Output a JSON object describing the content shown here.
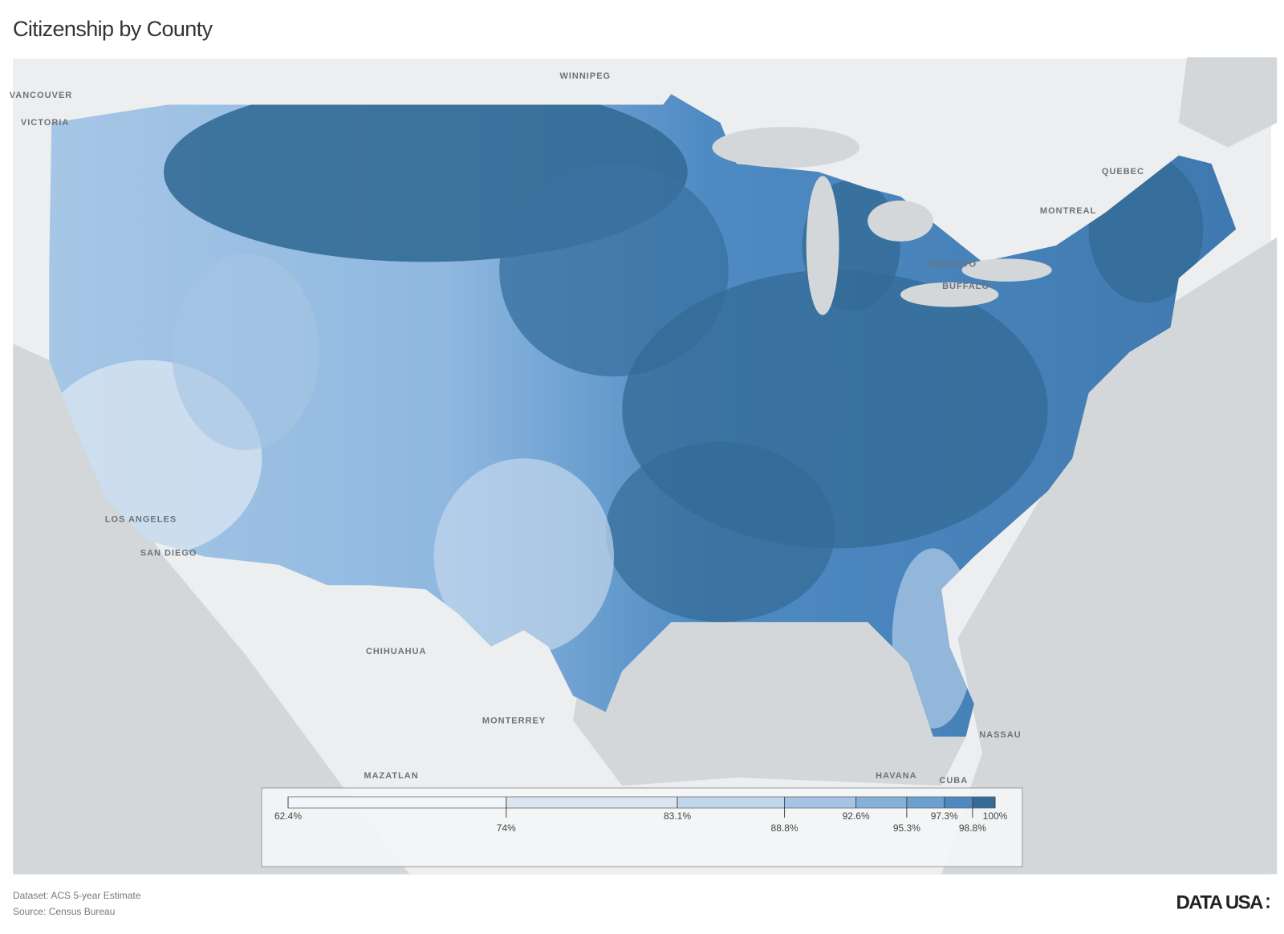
{
  "header": {
    "title": "Citizenship by County"
  },
  "map": {
    "type": "choropleth",
    "place_labels": [
      "VANCOUVER",
      "VICTORIA",
      "WINNIPEG",
      "QUEBEC",
      "MONTREAL",
      "TORONTO",
      "BUFFALO",
      "LOS ANGELES",
      "SAN DIEGO",
      "CHIHUAHUA",
      "MONTERREY",
      "MAZATLAN",
      "HAVANA",
      "CUBA",
      "NASSAU"
    ]
  },
  "legend": {
    "ticks": [
      {
        "value": 62.4,
        "label": "62.4%"
      },
      {
        "value": 74,
        "label": "74%"
      },
      {
        "value": 83.1,
        "label": "83.1%"
      },
      {
        "value": 88.8,
        "label": "88.8%"
      },
      {
        "value": 92.6,
        "label": "92.6%"
      },
      {
        "value": 95.3,
        "label": "95.3%"
      },
      {
        "value": 97.3,
        "label": "97.3%"
      },
      {
        "value": 98.8,
        "label": "98.8%"
      },
      {
        "value": 100,
        "label": "100%"
      }
    ],
    "colors": [
      "#f2f5f9",
      "#dbe6f2",
      "#c3d7ec",
      "#a5c4e4",
      "#86b1da",
      "#6b9fd0",
      "#4d89c0",
      "#336b96"
    ]
  },
  "footer": {
    "dataset": "Dataset: ACS 5-year Estimate",
    "source": "Source: Census Bureau",
    "logo": "DATA USA"
  }
}
